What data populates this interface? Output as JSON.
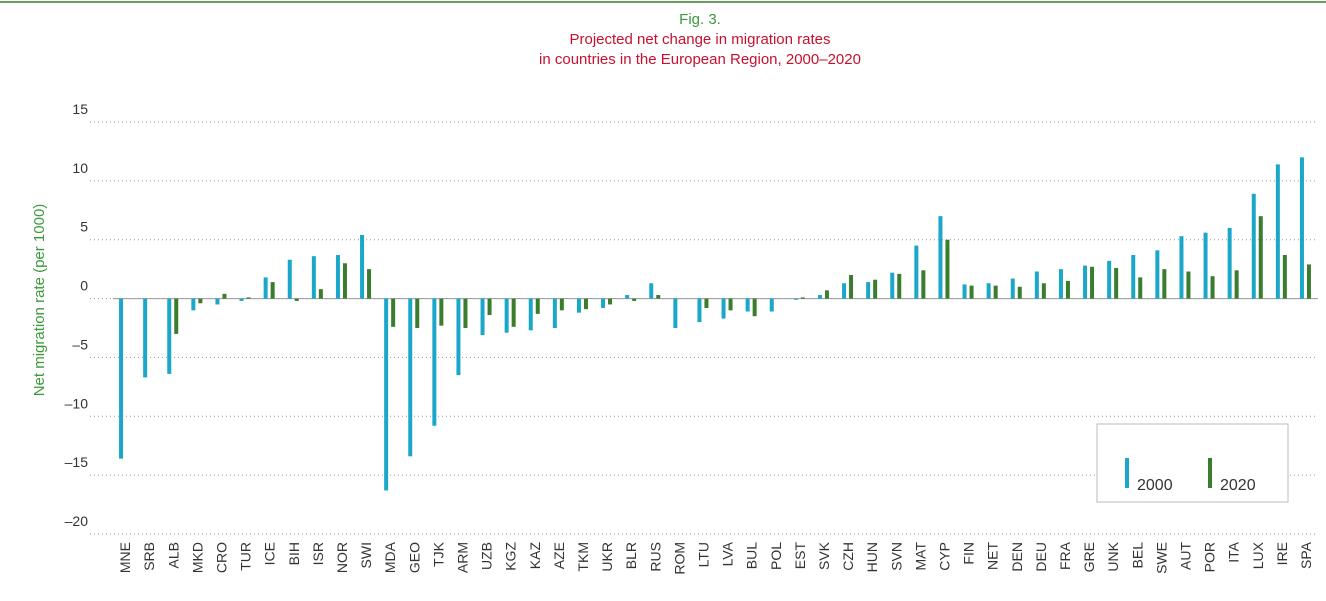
{
  "chart_data": {
    "type": "bar",
    "figure_label": "Fig. 3.",
    "title": [
      "Projected net change in migration rates",
      "in countries in the European Region, 2000–2020"
    ],
    "y_label": "Net migration rate (per 1000)",
    "categories": [
      "MNE",
      "SRB",
      "ALB",
      "MKD",
      "CRO",
      "TUR",
      "ICE",
      "BIH",
      "ISR",
      "NOR",
      "SWI",
      "MDA",
      "GEO",
      "TJK",
      "ARM",
      "UZB",
      "KGZ",
      "KAZ",
      "AZE",
      "TKM",
      "UKR",
      "BLR",
      "RUS",
      "ROM",
      "LTU",
      "LVA",
      "BUL",
      "POL",
      "EST",
      "SVK",
      "CZH",
      "HUN",
      "SVN",
      "MAT",
      "CYP",
      "FIN",
      "NET",
      "DEN",
      "DEU",
      "FRA",
      "GRE",
      "UNK",
      "BEL",
      "SWE",
      "AUT",
      "POR",
      "ITA",
      "LUX",
      "IRE",
      "SPA"
    ],
    "series": [
      {
        "name": "2000",
        "color": "#1aa7c9",
        "values": [
          -13.6,
          -6.7,
          -6.4,
          -1.0,
          -0.5,
          -0.2,
          1.8,
          3.3,
          3.6,
          3.7,
          5.4,
          -16.3,
          -13.4,
          -10.8,
          -6.5,
          -3.1,
          -2.9,
          -2.7,
          -2.5,
          -1.2,
          -0.8,
          0.3,
          1.3,
          -2.5,
          -2.0,
          -1.7,
          -1.1,
          -1.1,
          -0.1,
          0.3,
          1.3,
          1.4,
          2.2,
          4.5,
          7.0,
          1.2,
          1.3,
          1.7,
          2.3,
          2.5,
          2.8,
          3.2,
          3.7,
          4.1,
          5.3,
          5.6,
          6.0,
          8.9,
          11.4,
          12.0
        ]
      },
      {
        "name": "2020",
        "color": "#3a7d2c",
        "values": [
          null,
          null,
          -3.0,
          -0.4,
          0.4,
          0.1,
          1.4,
          -0.2,
          0.8,
          3.0,
          2.5,
          -2.4,
          -2.5,
          -2.3,
          -2.5,
          -1.4,
          -2.4,
          -1.3,
          -1.0,
          -0.9,
          -0.5,
          -0.2,
          0.3,
          null,
          -0.8,
          -1.0,
          -1.5,
          null,
          0.1,
          0.7,
          2.0,
          1.6,
          2.1,
          2.4,
          5.0,
          1.1,
          1.1,
          1.0,
          1.3,
          1.5,
          2.7,
          2.6,
          1.8,
          2.5,
          2.3,
          1.9,
          2.4,
          7.0,
          3.7,
          2.9
        ]
      }
    ],
    "ylim": [
      -20,
      15
    ],
    "yticks": [
      {
        "value": -20,
        "label": "–20"
      },
      {
        "value": -15,
        "label": "–15"
      },
      {
        "value": -10,
        "label": "–10"
      },
      {
        "value": -5,
        "label": "–5"
      },
      0,
      5,
      10,
      15
    ],
    "grid": true,
    "legend": "lower right"
  }
}
